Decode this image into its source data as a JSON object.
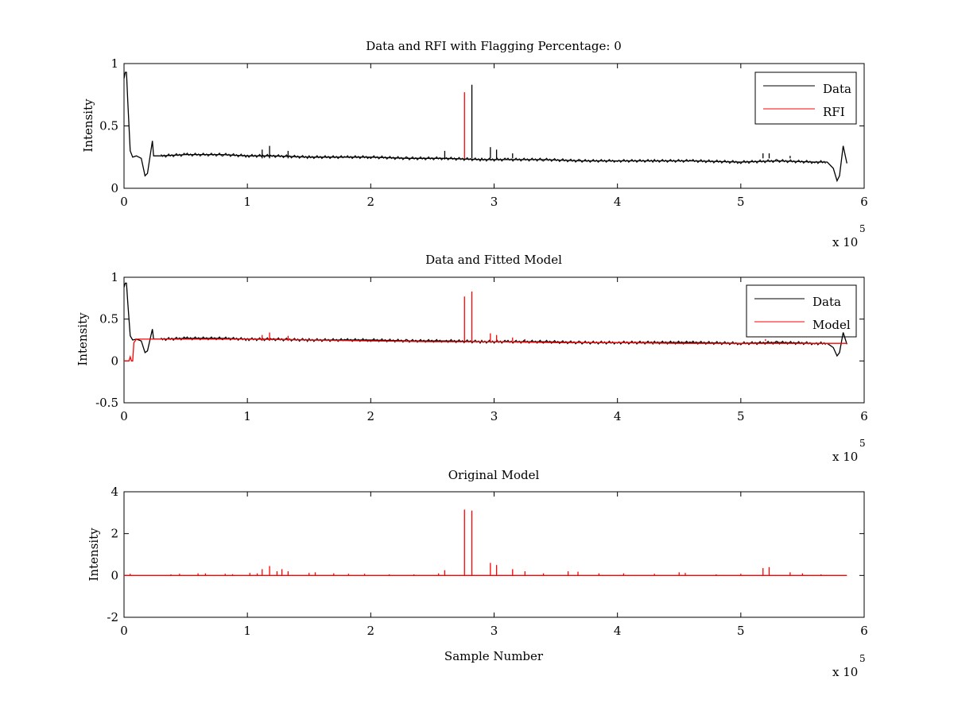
{
  "chart_data": [
    {
      "type": "line",
      "title": "Data and RFI with Flagging Percentage: 0",
      "xlabel": "",
      "ylabel": "Intensity",
      "xlim": [
        0,
        6
      ],
      "ylim": [
        0,
        1
      ],
      "x_multiplier": "x 10",
      "x_exponent": "5",
      "x_ticks": [
        "0",
        "1",
        "2",
        "3",
        "4",
        "5",
        "6"
      ],
      "y_ticks": [
        "0",
        "0.5",
        "1"
      ],
      "legend_position": "top-right",
      "series": [
        {
          "name": "Data",
          "color": "#000000",
          "x": [
            0,
            0.01,
            0.02,
            0.03,
            0.05,
            0.07,
            0.1,
            0.14,
            0.17,
            0.19,
            0.21,
            0.23,
            0.24,
            0.3,
            0.5,
            0.8,
            1.0,
            1.2,
            1.5,
            1.8,
            2.0,
            2.3,
            2.6,
            2.9,
            3.1,
            3.4,
            3.7,
            4.0,
            4.3,
            4.6,
            5.0,
            5.3,
            5.6,
            5.7,
            5.75,
            5.78,
            5.8,
            5.83,
            5.86
          ],
          "y": [
            0.88,
            0.93,
            0.93,
            0.7,
            0.3,
            0.25,
            0.26,
            0.24,
            0.1,
            0.12,
            0.25,
            0.38,
            0.26,
            0.26,
            0.27,
            0.27,
            0.26,
            0.26,
            0.25,
            0.25,
            0.25,
            0.24,
            0.24,
            0.23,
            0.23,
            0.23,
            0.22,
            0.22,
            0.22,
            0.22,
            0.21,
            0.22,
            0.21,
            0.21,
            0.16,
            0.06,
            0.1,
            0.34,
            0.2
          ],
          "spikes_x": [
            1.12,
            1.18,
            1.33,
            2.6,
            2.82,
            2.97,
            3.02,
            3.15,
            5.18,
            5.23,
            5.4
          ],
          "spikes_y": [
            0.31,
            0.34,
            0.3,
            0.3,
            0.83,
            0.33,
            0.31,
            0.28,
            0.28,
            0.28,
            0.26
          ]
        },
        {
          "name": "RFI",
          "color": "#ff0000",
          "x": [],
          "y": [],
          "spikes_x": [
            2.76
          ],
          "spikes_y": [
            0.77
          ]
        }
      ]
    },
    {
      "type": "line",
      "title": "Data and Fitted Model",
      "xlabel": "",
      "ylabel": "Intensity",
      "xlim": [
        0,
        6
      ],
      "ylim": [
        -0.5,
        1
      ],
      "x_multiplier": "x 10",
      "x_exponent": "5",
      "x_ticks": [
        "0",
        "1",
        "2",
        "3",
        "4",
        "5",
        "6"
      ],
      "y_ticks": [
        "-0.5",
        "0",
        "0.5",
        "1"
      ],
      "legend_position": "top-right",
      "series": [
        {
          "name": "Data",
          "color": "#000000",
          "x": [
            0,
            0.01,
            0.02,
            0.03,
            0.05,
            0.07,
            0.1,
            0.14,
            0.17,
            0.19,
            0.21,
            0.23,
            0.24,
            0.3,
            0.5,
            0.8,
            1.0,
            1.2,
            1.5,
            1.8,
            2.0,
            2.3,
            2.6,
            2.9,
            3.1,
            3.4,
            3.7,
            4.0,
            4.3,
            4.6,
            5.0,
            5.3,
            5.6,
            5.7,
            5.75,
            5.78,
            5.8,
            5.83,
            5.86
          ],
          "y": [
            0.88,
            0.93,
            0.93,
            0.7,
            0.3,
            0.25,
            0.26,
            0.24,
            0.1,
            0.12,
            0.25,
            0.38,
            0.26,
            0.26,
            0.27,
            0.27,
            0.26,
            0.26,
            0.25,
            0.25,
            0.25,
            0.24,
            0.24,
            0.23,
            0.23,
            0.23,
            0.22,
            0.22,
            0.22,
            0.22,
            0.21,
            0.22,
            0.21,
            0.21,
            0.16,
            0.06,
            0.1,
            0.34,
            0.2
          ],
          "spikes_x": [],
          "spikes_y": []
        },
        {
          "name": "Model",
          "color": "#ff0000",
          "x": [
            0,
            0.04,
            0.05,
            0.06,
            0.07,
            0.08,
            0.09,
            0.1,
            0.3,
            0.6,
            1.0,
            1.5,
            2.0,
            2.5,
            3.0,
            3.5,
            4.0,
            4.5,
            5.0,
            5.5,
            5.86
          ],
          "y": [
            0,
            0,
            0.05,
            0,
            0,
            0.22,
            0.24,
            0.26,
            0.26,
            0.26,
            0.26,
            0.25,
            0.24,
            0.23,
            0.23,
            0.22,
            0.22,
            0.21,
            0.21,
            0.21,
            0.21
          ],
          "spikes_x": [
            1.12,
            1.18,
            1.33,
            2.76,
            2.82,
            2.97,
            3.02,
            3.15,
            3.25,
            5.2
          ],
          "spikes_y": [
            0.31,
            0.34,
            0.3,
            0.77,
            0.83,
            0.33,
            0.31,
            0.28,
            0.26,
            0.26
          ]
        }
      ]
    },
    {
      "type": "line",
      "title": "Original Model",
      "xlabel": "Sample Number",
      "ylabel": "Intensity",
      "xlim": [
        0,
        6
      ],
      "ylim": [
        -2,
        4
      ],
      "x_multiplier": "x 10",
      "x_exponent": "5",
      "x_ticks": [
        "0",
        "1",
        "2",
        "3",
        "4",
        "5",
        "6"
      ],
      "y_ticks": [
        "-2",
        "0",
        "2",
        "4"
      ],
      "legend_position": "none",
      "series": [
        {
          "name": "",
          "color": "#ff0000",
          "x": [
            0,
            5.86
          ],
          "y": [
            0,
            0
          ],
          "spikes_x": [
            0.05,
            0.38,
            0.45,
            0.6,
            0.66,
            0.82,
            0.88,
            1.02,
            1.08,
            1.12,
            1.18,
            1.24,
            1.28,
            1.33,
            1.5,
            1.55,
            1.7,
            1.82,
            1.95,
            2.15,
            2.35,
            2.55,
            2.6,
            2.76,
            2.82,
            2.97,
            3.02,
            3.15,
            3.25,
            3.4,
            3.6,
            3.68,
            3.85,
            4.05,
            4.3,
            4.5,
            4.55,
            4.8,
            5.0,
            5.18,
            5.23,
            5.4,
            5.5,
            5.65
          ],
          "spikes_y": [
            0.08,
            0.05,
            0.08,
            0.1,
            0.1,
            0.08,
            0.06,
            0.12,
            0.1,
            0.3,
            0.45,
            0.2,
            0.3,
            0.2,
            0.12,
            0.15,
            0.1,
            0.08,
            0.08,
            0.05,
            0.05,
            0.1,
            0.25,
            3.15,
            3.1,
            0.6,
            0.5,
            0.3,
            0.2,
            0.1,
            0.2,
            0.18,
            0.1,
            0.1,
            0.08,
            0.15,
            0.12,
            0.05,
            0.08,
            0.35,
            0.4,
            0.15,
            0.1,
            0.05
          ]
        }
      ]
    }
  ]
}
